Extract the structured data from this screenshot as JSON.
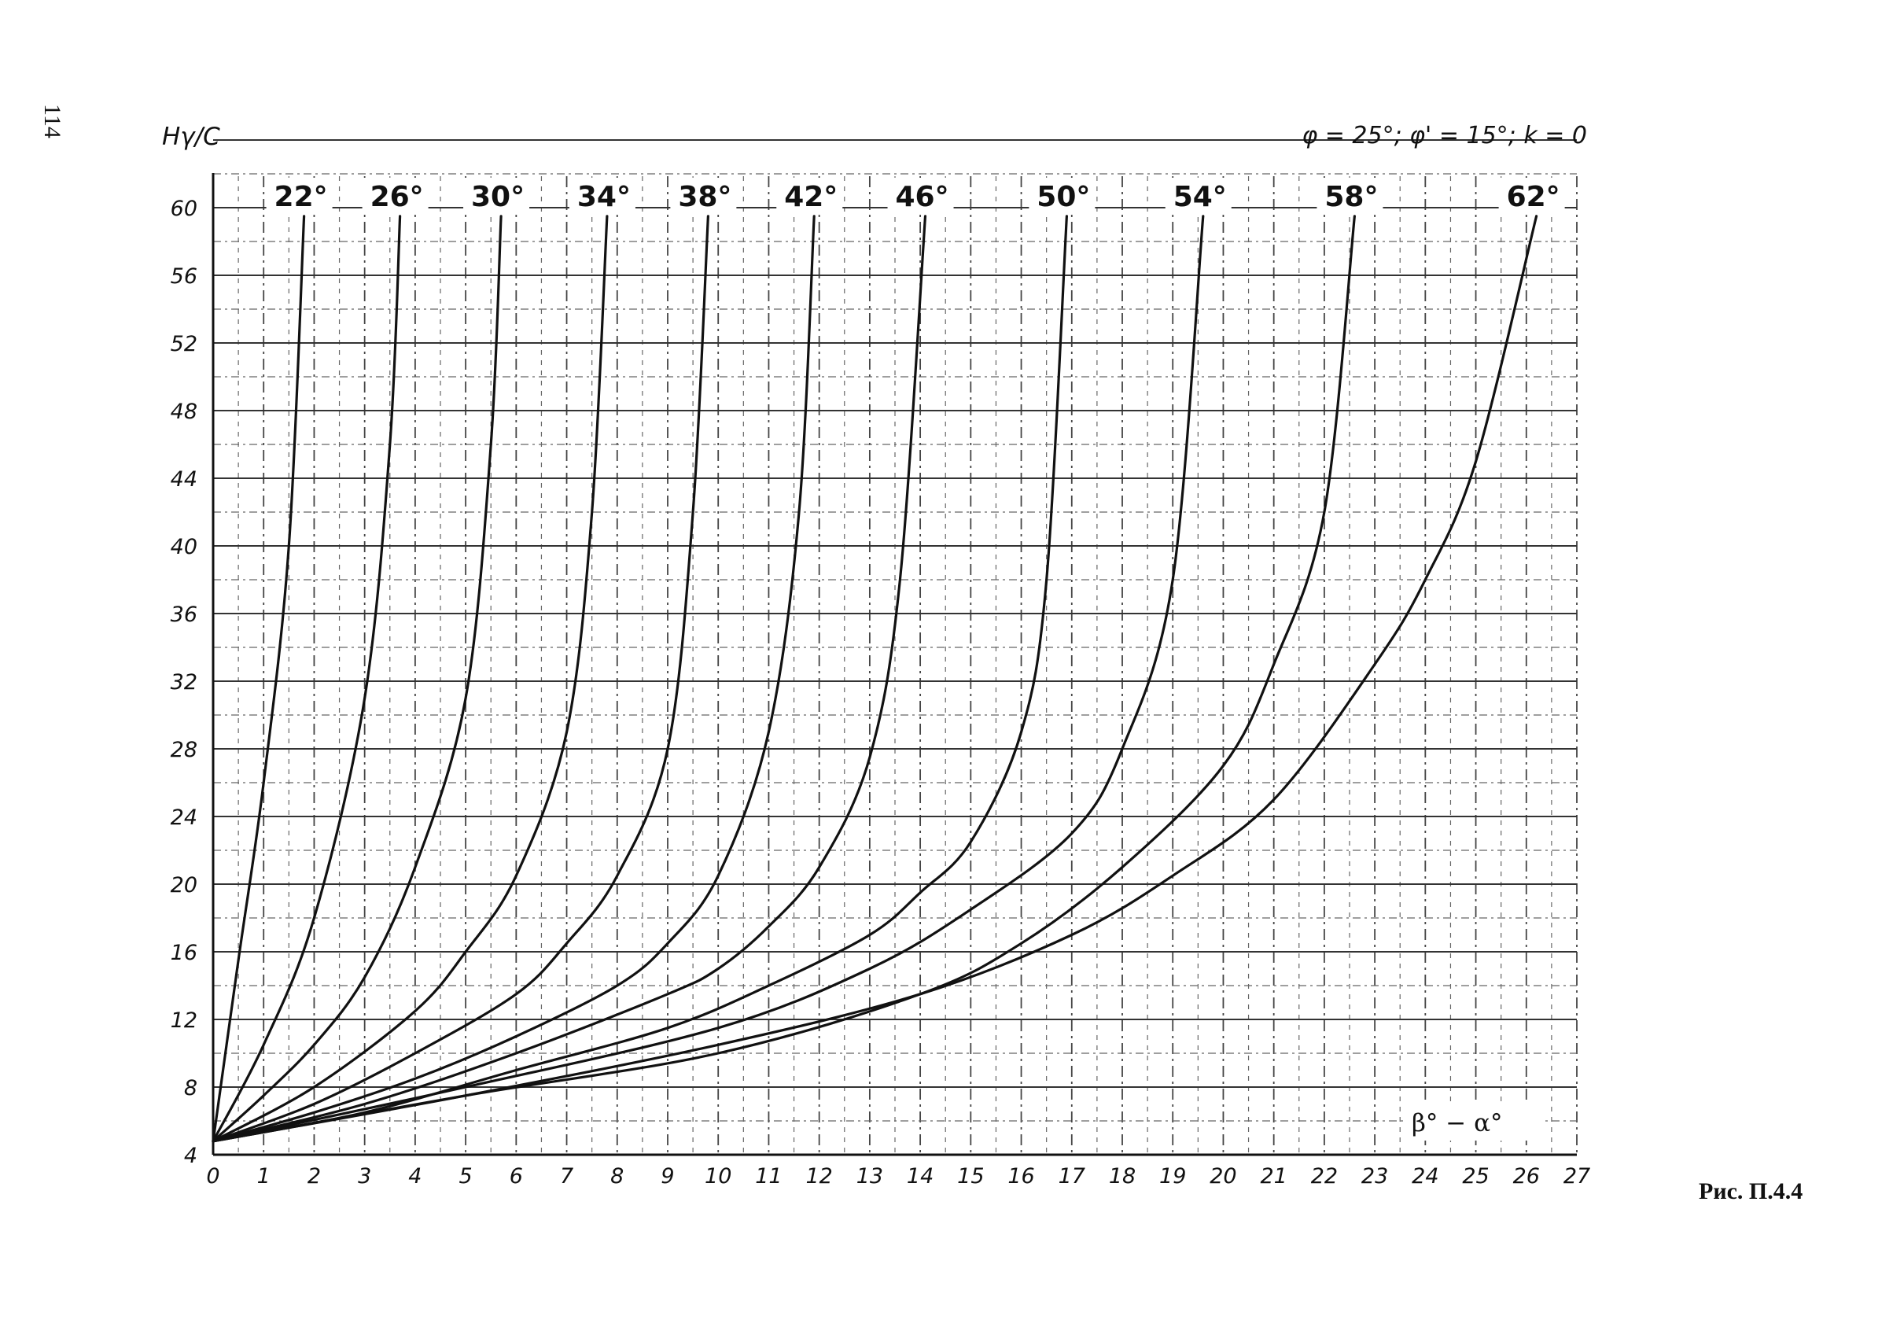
{
  "page_number": "114",
  "caption": "Рис. П.4.4",
  "chart_data": {
    "type": "line",
    "title": "φ = 25°; φ' = 15°; k = 0",
    "ylabel": "Hγ/C",
    "xlabel": "β° − α°",
    "xlim": [
      0,
      27
    ],
    "ylim": [
      4,
      60
    ],
    "x_ticks": [
      "0",
      "1",
      "2",
      "3",
      "4",
      "5",
      "6",
      "7",
      "8",
      "9",
      "10",
      "11",
      "12",
      "13",
      "14",
      "15",
      "16",
      "17",
      "18",
      "19",
      "20",
      "21",
      "22",
      "23",
      "24",
      "25",
      "26",
      "27"
    ],
    "y_ticks": [
      "4",
      "8",
      "12",
      "16",
      "20",
      "24",
      "28",
      "32",
      "36",
      "40",
      "44",
      "48",
      "52",
      "56",
      "60"
    ],
    "grid": true,
    "series": [
      {
        "name": "22°",
        "x": [
          0,
          0.5,
          1,
          1.5,
          1.8
        ],
        "y": [
          4.8,
          15.5,
          26,
          40,
          59.5
        ]
      },
      {
        "name": "26°",
        "x": [
          0,
          1,
          2,
          3,
          3.5,
          3.7
        ],
        "y": [
          4.8,
          10.5,
          18,
          31,
          46,
          59.5
        ]
      },
      {
        "name": "30°",
        "x": [
          0,
          1,
          2,
          3,
          4,
          5,
          5.5,
          5.7
        ],
        "y": [
          4.8,
          7.5,
          10.5,
          14.5,
          21,
          31,
          46,
          59.5
        ]
      },
      {
        "name": "34°",
        "x": [
          0,
          2,
          4,
          5,
          6,
          7,
          7.5,
          7.8
        ],
        "y": [
          4.8,
          8,
          12.5,
          16,
          20.5,
          29,
          42,
          59.5
        ]
      },
      {
        "name": "38°",
        "x": [
          0,
          2,
          4,
          6,
          7,
          8,
          9,
          9.5,
          9.8
        ],
        "y": [
          4.8,
          7,
          10,
          13.5,
          16.5,
          20.5,
          28,
          42,
          59.5
        ]
      },
      {
        "name": "42°",
        "x": [
          0,
          2,
          4,
          6,
          8,
          9,
          10,
          11,
          11.6,
          11.9
        ],
        "y": [
          4.8,
          6.5,
          8.5,
          11,
          14,
          16.5,
          20.5,
          29,
          42,
          59.5
        ]
      },
      {
        "name": "46°",
        "x": [
          0,
          3,
          6,
          9,
          10,
          11,
          12,
          13,
          13.6,
          14.1
        ],
        "y": [
          4.8,
          7,
          10,
          13.5,
          15,
          17.5,
          21,
          27.5,
          38,
          59.5
        ]
      },
      {
        "name": "50°",
        "x": [
          0,
          3,
          6,
          9,
          11,
          13,
          14,
          15,
          16,
          16.5,
          16.9
        ],
        "y": [
          4.8,
          6.5,
          9,
          11.5,
          14,
          17,
          19.5,
          22.5,
          29,
          38,
          59.5
        ]
      },
      {
        "name": "54°",
        "x": [
          0,
          5,
          10,
          13,
          15,
          17,
          18,
          19,
          19.6
        ],
        "y": [
          4.8,
          8,
          11.5,
          15,
          18.5,
          23,
          28,
          38,
          59.5
        ]
      },
      {
        "name": "58°",
        "x": [
          0,
          5,
          10,
          14,
          16,
          18,
          20,
          21,
          22,
          22.6
        ],
        "y": [
          4.8,
          7.5,
          10,
          13.5,
          16.5,
          21,
          27,
          33,
          42,
          59.5
        ]
      },
      {
        "name": "62°",
        "x": [
          0,
          5,
          10,
          14,
          17,
          19,
          21,
          23,
          24,
          25,
          26.2
        ],
        "y": [
          4.8,
          7.5,
          10.5,
          13.5,
          17,
          20.5,
          25,
          33,
          38,
          45,
          59.5
        ]
      }
    ]
  }
}
